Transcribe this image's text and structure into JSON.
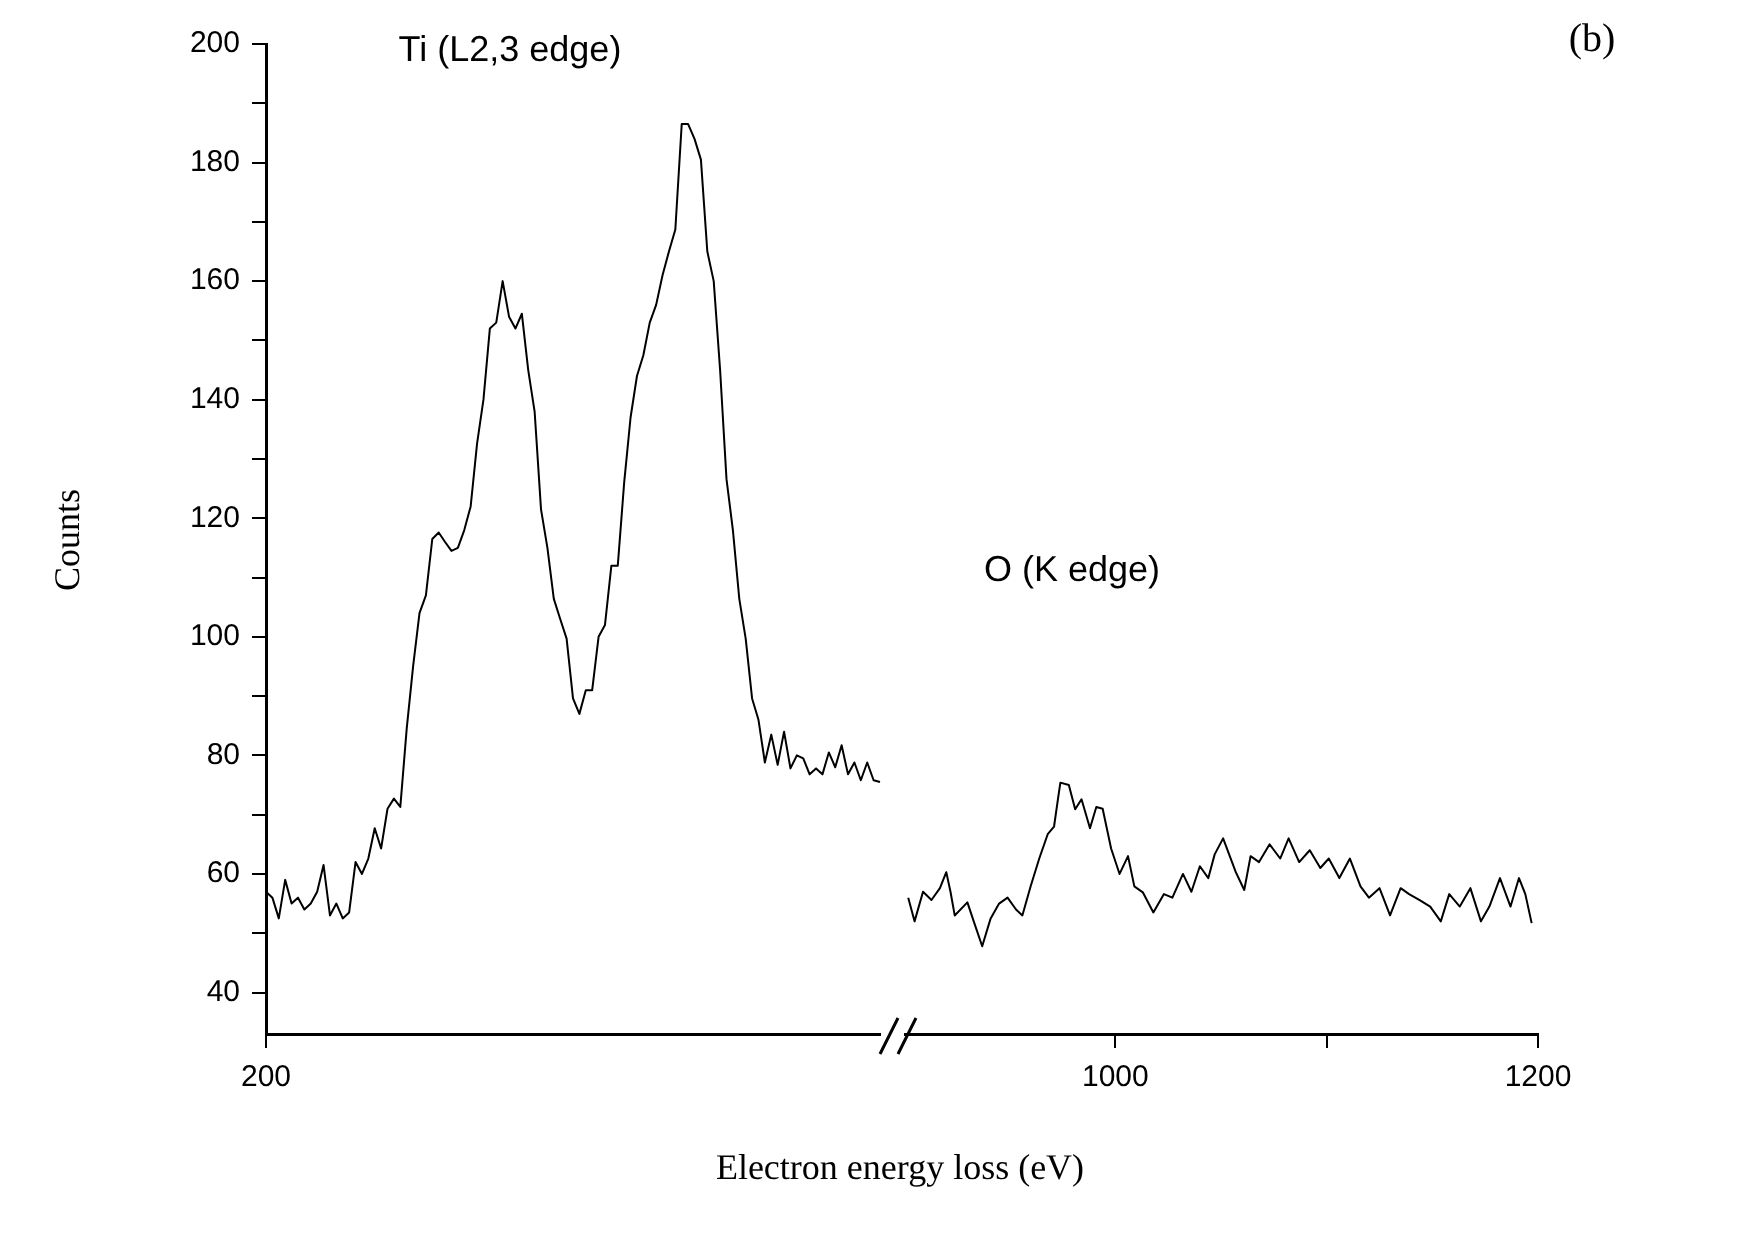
{
  "chart_data": [
    {
      "type": "line",
      "xlabel": "Electron energy loss (eV)",
      "ylabel": "Counts",
      "annotations": [
        "Ti (L2,3 edge)",
        "(b)"
      ],
      "categories": [
        "200",
        null,
        null,
        null,
        null,
        null,
        null,
        null,
        null,
        null,
        null,
        null,
        null,
        null,
        null,
        null,
        null,
        null,
        null,
        null,
        null,
        null,
        null,
        null,
        null,
        null,
        null,
        null,
        null,
        null,
        null,
        null,
        null,
        null,
        null,
        null,
        null,
        null,
        null,
        null,
        null,
        null,
        null,
        null,
        null,
        null,
        null,
        null,
        null,
        null,
        null,
        null,
        null,
        null,
        null,
        null,
        null,
        null,
        null,
        null,
        null,
        null,
        null,
        null,
        null,
        null,
        null,
        null,
        null,
        null,
        null,
        null,
        null,
        null,
        null,
        null,
        null,
        null,
        null,
        null,
        null,
        null,
        null,
        null,
        null,
        null,
        null,
        null,
        null,
        null,
        null,
        null,
        null,
        null,
        null,
        null,
        null
      ],
      "ylim": [
        33,
        200
      ],
      "yticks": [
        40,
        {
          "value": 50,
          "label": null
        },
        60,
        {
          "value": 70,
          "label": null
        },
        80,
        {
          "value": 90,
          "label": null
        },
        100,
        {
          "value": 110,
          "label": null
        },
        120,
        {
          "value": 130,
          "label": null
        },
        140,
        {
          "value": 150,
          "label": null
        },
        160,
        {
          "value": 170,
          "label": null
        },
        180,
        {
          "value": 190,
          "label": null
        },
        200
      ],
      "grid": false,
      "legend": false,
      "marker": "none",
      "line_style": "solid",
      "series": [
        {
          "color": "#000000",
          "values": [
            57,
            56,
            52.5,
            59,
            55,
            56,
            54,
            55,
            57,
            61.5,
            53,
            55,
            52.5,
            53.5,
            62,
            60,
            62.6,
            67.7,
            64.3,
            71,
            72.7,
            71.3,
            84.5,
            95,
            104,
            107,
            116.5,
            117.6,
            116,
            114.5,
            115,
            118,
            122,
            132.6,
            140,
            152,
            153,
            160,
            154,
            152,
            154.5,
            145,
            138,
            121.5,
            115,
            106.4,
            103,
            99.7,
            89.6,
            87,
            91,
            91,
            100,
            102,
            112,
            112,
            126,
            137,
            144,
            147.5,
            153,
            156,
            161,
            165,
            168.7,
            186.5,
            186.5,
            184,
            180.5,
            165,
            160,
            145,
            126.6,
            118,
            106.4,
            99.7,
            89.6,
            86,
            78.8,
            83.5,
            78.4,
            84,
            77.8,
            80,
            79.5,
            76.8,
            77.8,
            76.8,
            80.5,
            78,
            81.7,
            76.8,
            78.8,
            75.8,
            78.8,
            75.8,
            75.5
          ]
        }
      ]
    },
    {
      "type": "line",
      "tick_labels": "x",
      "annotations": [
        "O (K edge)"
      ],
      "xlim": [
        900,
        1200
      ],
      "xticks": [
        1000,
        {
          "value": 1100,
          "label": null
        },
        1200
      ],
      "ylim": [
        33,
        200
      ],
      "grid": false,
      "legend": false,
      "marker": "none",
      "line_style": "solid",
      "series": [
        {
          "color": "#000000",
          "x": [
            902,
            905,
            909,
            913,
            917,
            920,
            922,
            924,
            930,
            933,
            937,
            941,
            945,
            949,
            953,
            956,
            960,
            964,
            968,
            971,
            973,
            974,
            978,
            981,
            984,
            988,
            991,
            994,
            998,
            1002,
            1006,
            1009,
            1013,
            1018,
            1023,
            1027,
            1032,
            1036,
            1040,
            1044,
            1047,
            1051,
            1057,
            1061,
            1064,
            1068,
            1073,
            1078,
            1082,
            1087,
            1092,
            1097,
            1101,
            1106,
            1111,
            1116,
            1120,
            1125,
            1130,
            1135,
            1139,
            1144,
            1149,
            1154,
            1158,
            1163,
            1168,
            1173,
            1177,
            1182,
            1187,
            1191,
            1194,
            1197
          ],
          "values": [
            56,
            52,
            57,
            55.6,
            57.6,
            60.3,
            57,
            53,
            55.2,
            52,
            47.8,
            52.5,
            55,
            56,
            54,
            53,
            58,
            62.6,
            66.7,
            68,
            73,
            75.4,
            75,
            70.9,
            72.6,
            67.7,
            71.3,
            71,
            64.3,
            60,
            63,
            57.9,
            56.9,
            53.5,
            56.6,
            56,
            60,
            57,
            61.3,
            59.3,
            63.3,
            66,
            60.3,
            57.3,
            63,
            62,
            65,
            62.6,
            66,
            62,
            64,
            61,
            62.6,
            59.3,
            62.6,
            57.9,
            56,
            57.6,
            53,
            57.6,
            56.6,
            55.6,
            54.5,
            52,
            56.6,
            54.5,
            57.6,
            52,
            54.5,
            59.3,
            54.5,
            59.3,
            56.6,
            51.7
          ]
        }
      ]
    }
  ]
}
